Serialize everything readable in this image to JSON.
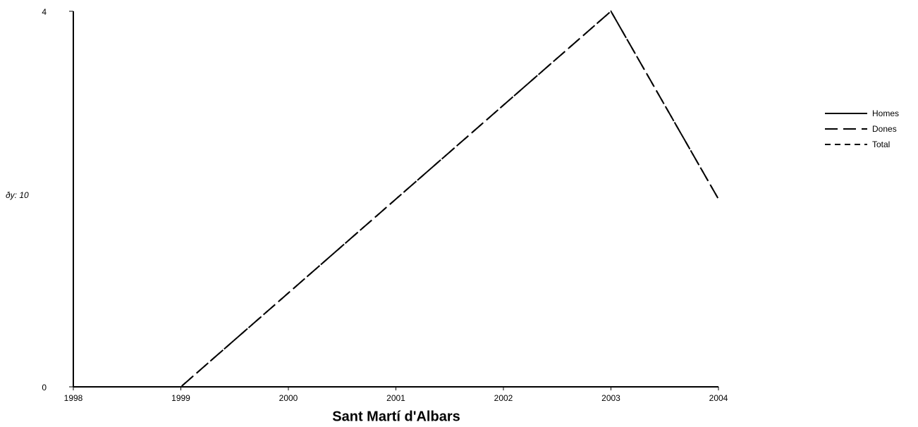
{
  "chart_data": {
    "type": "line",
    "title": "Sant Martí d'Albars",
    "y_label": "ðy: 10",
    "x": [
      1998,
      1999,
      2000,
      2001,
      2002,
      2003,
      2004
    ],
    "xlim": [
      1998,
      2004
    ],
    "xticks": [
      1998,
      1999,
      2000,
      2001,
      2002,
      2003,
      2004
    ],
    "ylim": [
      0,
      4
    ],
    "yticks": [
      0,
      4
    ],
    "legend": "right",
    "series": [
      {
        "name": "Homes",
        "color": "#000000",
        "dash": "solid",
        "values": [
          0,
          0,
          0,
          0,
          0,
          0,
          0
        ]
      },
      {
        "name": "Dones",
        "color": "#000000",
        "dash": "longdash",
        "values": [
          0,
          0,
          1,
          2,
          3,
          4,
          2
        ]
      },
      {
        "name": "Total",
        "color": "#000000",
        "dash": "dash",
        "values": [
          0,
          0,
          1,
          2,
          3,
          4,
          2
        ]
      }
    ]
  }
}
